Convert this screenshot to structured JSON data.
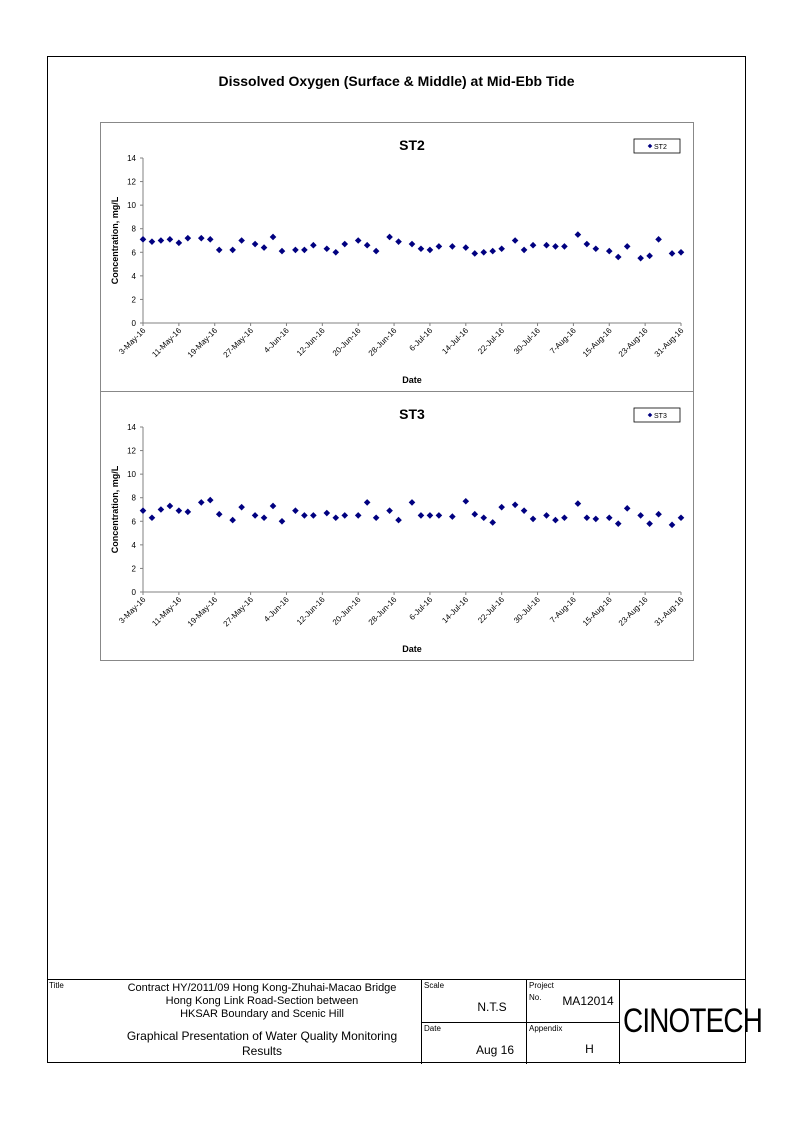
{
  "page_title": "Dissolved Oxygen (Surface & Middle) at Mid-Ebb Tide",
  "chart_data": [
    {
      "type": "scatter",
      "title": "ST2",
      "xlabel": "Date",
      "ylabel": "Concentration, mg/L",
      "ylim": [
        0,
        14
      ],
      "yticks": [
        0,
        2,
        4,
        6,
        8,
        10,
        12,
        14
      ],
      "x_range": [
        "2016-05-03",
        "2016-08-31"
      ],
      "xtick_labels": [
        "3-May-16",
        "11-May-16",
        "19-May-16",
        "27-May-16",
        "4-Jun-16",
        "12-Jun-16",
        "20-Jun-16",
        "28-Jun-16",
        "6-Jul-16",
        "14-Jul-16",
        "22-Jul-16",
        "30-Jul-16",
        "7-Aug-16",
        "15-Aug-16",
        "23-Aug-16",
        "31-Aug-16"
      ],
      "xtick_dates": [
        "2016-05-03",
        "2016-05-11",
        "2016-05-19",
        "2016-05-27",
        "2016-06-04",
        "2016-06-12",
        "2016-06-20",
        "2016-06-28",
        "2016-07-06",
        "2016-07-14",
        "2016-07-22",
        "2016-07-30",
        "2016-08-07",
        "2016-08-15",
        "2016-08-23",
        "2016-08-31"
      ],
      "legend": "top-right",
      "marker_color": "#000080",
      "series": [
        {
          "name": "ST2",
          "x": [
            "2016-05-03",
            "2016-05-05",
            "2016-05-07",
            "2016-05-09",
            "2016-05-11",
            "2016-05-13",
            "2016-05-16",
            "2016-05-18",
            "2016-05-20",
            "2016-05-23",
            "2016-05-25",
            "2016-05-28",
            "2016-05-30",
            "2016-06-01",
            "2016-06-03",
            "2016-06-06",
            "2016-06-08",
            "2016-06-10",
            "2016-06-13",
            "2016-06-15",
            "2016-06-17",
            "2016-06-20",
            "2016-06-22",
            "2016-06-24",
            "2016-06-27",
            "2016-06-29",
            "2016-07-02",
            "2016-07-04",
            "2016-07-06",
            "2016-07-08",
            "2016-07-11",
            "2016-07-14",
            "2016-07-16",
            "2016-07-18",
            "2016-07-20",
            "2016-07-22",
            "2016-07-25",
            "2016-07-27",
            "2016-07-29",
            "2016-08-01",
            "2016-08-03",
            "2016-08-05",
            "2016-08-08",
            "2016-08-10",
            "2016-08-12",
            "2016-08-15",
            "2016-08-17",
            "2016-08-19",
            "2016-08-22",
            "2016-08-24",
            "2016-08-26",
            "2016-08-29",
            "2016-08-31"
          ],
          "y": [
            7.1,
            6.9,
            7.0,
            7.1,
            6.8,
            7.2,
            7.2,
            7.1,
            6.2,
            6.2,
            7.0,
            6.7,
            6.4,
            7.3,
            6.1,
            6.2,
            6.2,
            6.6,
            6.3,
            6.0,
            6.7,
            7.0,
            6.6,
            6.1,
            7.3,
            6.9,
            6.7,
            6.3,
            6.2,
            6.5,
            6.5,
            6.4,
            5.9,
            6.0,
            6.1,
            6.3,
            7.0,
            6.2,
            6.6,
            6.6,
            6.5,
            6.5,
            7.5,
            6.7,
            6.3,
            6.1,
            5.6,
            6.5,
            5.5,
            5.7,
            7.1,
            5.9,
            6.0
          ]
        }
      ]
    },
    {
      "type": "scatter",
      "title": "ST3",
      "xlabel": "Date",
      "ylabel": "Concentration, mg/L",
      "ylim": [
        0,
        14
      ],
      "yticks": [
        0,
        2,
        4,
        6,
        8,
        10,
        12,
        14
      ],
      "x_range": [
        "2016-05-03",
        "2016-08-31"
      ],
      "xtick_labels": [
        "3-May-16",
        "11-May-16",
        "19-May-16",
        "27-May-16",
        "4-Jun-16",
        "12-Jun-16",
        "20-Jun-16",
        "28-Jun-16",
        "6-Jul-16",
        "14-Jul-16",
        "22-Jul-16",
        "30-Jul-16",
        "7-Aug-16",
        "15-Aug-16",
        "23-Aug-16",
        "31-Aug-16"
      ],
      "xtick_dates": [
        "2016-05-03",
        "2016-05-11",
        "2016-05-19",
        "2016-05-27",
        "2016-06-04",
        "2016-06-12",
        "2016-06-20",
        "2016-06-28",
        "2016-07-06",
        "2016-07-14",
        "2016-07-22",
        "2016-07-30",
        "2016-08-07",
        "2016-08-15",
        "2016-08-23",
        "2016-08-31"
      ],
      "legend": "top-right",
      "marker_color": "#000080",
      "series": [
        {
          "name": "ST3",
          "x": [
            "2016-05-03",
            "2016-05-05",
            "2016-05-07",
            "2016-05-09",
            "2016-05-11",
            "2016-05-13",
            "2016-05-16",
            "2016-05-18",
            "2016-05-20",
            "2016-05-23",
            "2016-05-25",
            "2016-05-28",
            "2016-05-30",
            "2016-06-01",
            "2016-06-03",
            "2016-06-06",
            "2016-06-08",
            "2016-06-10",
            "2016-06-13",
            "2016-06-15",
            "2016-06-17",
            "2016-06-20",
            "2016-06-22",
            "2016-06-24",
            "2016-06-27",
            "2016-06-29",
            "2016-07-02",
            "2016-07-04",
            "2016-07-06",
            "2016-07-08",
            "2016-07-11",
            "2016-07-14",
            "2016-07-16",
            "2016-07-18",
            "2016-07-20",
            "2016-07-22",
            "2016-07-25",
            "2016-07-27",
            "2016-07-29",
            "2016-08-01",
            "2016-08-03",
            "2016-08-05",
            "2016-08-08",
            "2016-08-10",
            "2016-08-12",
            "2016-08-15",
            "2016-08-17",
            "2016-08-19",
            "2016-08-22",
            "2016-08-24",
            "2016-08-26",
            "2016-08-29",
            "2016-08-31"
          ],
          "y": [
            6.9,
            6.3,
            7.0,
            7.3,
            6.9,
            6.8,
            7.6,
            7.8,
            6.6,
            6.1,
            7.2,
            6.5,
            6.3,
            7.3,
            6.0,
            6.9,
            6.5,
            6.5,
            6.7,
            6.3,
            6.5,
            6.5,
            7.6,
            6.3,
            6.9,
            6.1,
            7.6,
            6.5,
            6.5,
            6.5,
            6.4,
            7.7,
            6.6,
            6.3,
            5.9,
            7.2,
            7.4,
            6.9,
            6.2,
            6.5,
            6.1,
            6.3,
            7.5,
            6.3,
            6.2,
            6.3,
            5.8,
            7.1,
            6.5,
            5.8,
            6.6,
            5.7,
            6.3
          ]
        }
      ]
    }
  ],
  "title_block": {
    "title_label": "Title",
    "title_line1": "Contract HY/2011/09 Hong Kong-Zhuhai-Macao Bridge",
    "title_line2": "Hong Kong Link Road-Section between",
    "title_line3": "HKSAR Boundary and Scenic Hill",
    "subtitle_line1": "Graphical Presentation of Water Quality Monitoring",
    "subtitle_line2": "Results",
    "scale_label": "Scale",
    "scale_value": "N.T.S",
    "date_label": "Date",
    "date_value": "Aug 16",
    "project_label": "Project",
    "no_label": "No.",
    "project_no": "MA12014",
    "appendix_label": "Appendix",
    "appendix_value": "H",
    "logo_text": "CINOTECH"
  }
}
